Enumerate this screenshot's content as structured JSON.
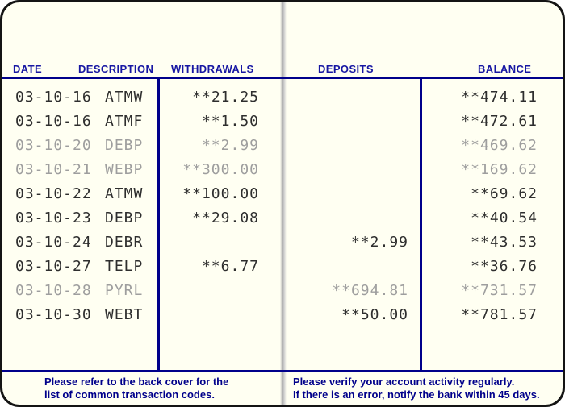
{
  "passbook": {
    "header": {
      "date": "DATE",
      "description": "DESCRIPTION",
      "withdrawals": "WITHDRAWALS",
      "deposits": "DEPOSITS",
      "balance": "BALANCE"
    },
    "rows": [
      {
        "date": "03-10-16",
        "code": "ATMW",
        "withdrawal": "**21.25",
        "deposit": "",
        "balance": "**474.11",
        "faded": false
      },
      {
        "date": "03-10-16",
        "code": "ATMF",
        "withdrawal": "**1.50",
        "deposit": "",
        "balance": "**472.61",
        "faded": false
      },
      {
        "date": "03-10-20",
        "code": "DEBP",
        "withdrawal": "**2.99",
        "deposit": "",
        "balance": "**469.62",
        "faded": true
      },
      {
        "date": "03-10-21",
        "code": "WEBP",
        "withdrawal": "**300.00",
        "deposit": "",
        "balance": "**169.62",
        "faded": true
      },
      {
        "date": "03-10-22",
        "code": "ATMW",
        "withdrawal": "**100.00",
        "deposit": "",
        "balance": "**69.62",
        "faded": false
      },
      {
        "date": "03-10-23",
        "code": "DEBP",
        "withdrawal": "**29.08",
        "deposit": "",
        "balance": "**40.54",
        "faded": false
      },
      {
        "date": "03-10-24",
        "code": "DEBR",
        "withdrawal": "",
        "deposit": "**2.99",
        "balance": "**43.53",
        "faded": false
      },
      {
        "date": "03-10-27",
        "code": "TELP",
        "withdrawal": "**6.77",
        "deposit": "",
        "balance": "**36.76",
        "faded": false
      },
      {
        "date": "03-10-28",
        "code": "PYRL",
        "withdrawal": "",
        "deposit": "**694.81",
        "balance": "**731.57",
        "faded": true
      },
      {
        "date": "03-10-30",
        "code": "WEBT",
        "withdrawal": "",
        "deposit": "**50.00",
        "balance": "**781.57",
        "faded": false
      }
    ],
    "footer": {
      "left_line1": "Please refer to the back cover for the",
      "left_line2": "list of common transaction codes.",
      "right_line1": "Please verify your account activity regularly.",
      "right_line2": "If there is an error, notify the bank within 45 days."
    },
    "colors": {
      "rule_navy": "#00008B",
      "header_text": "#1717A3",
      "ink": "#2E2E2E",
      "ink_faded": "#9E9E9E",
      "paper": "#FFFFF2"
    }
  }
}
